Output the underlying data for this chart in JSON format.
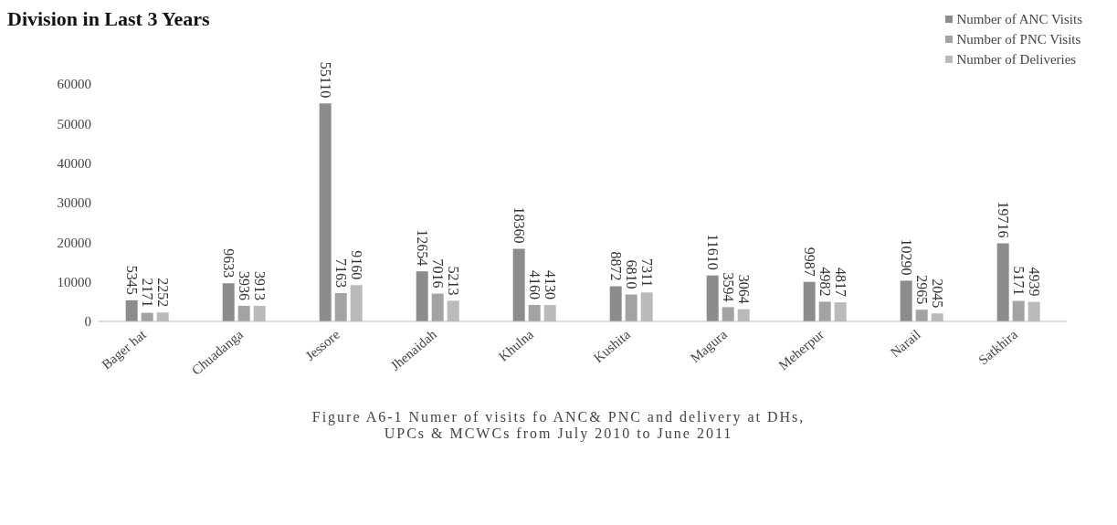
{
  "chart_data": {
    "type": "bar",
    "title": "Division in Last 3 Years",
    "annotations": [
      "Figure A6-1 Numer of visits fo ANC& PNC and delivery at DHs,",
      "UPCs & MCWCs from July 2010 to June 2011"
    ],
    "categories": [
      "Bager hat",
      "Chuadanga",
      "Jessore",
      "Jhenaidah",
      "Khulna",
      "Kushita",
      "Magura",
      "Meherpur",
      "Narail",
      "Satkhira"
    ],
    "series": [
      {
        "name": "Number of ANC Visits",
        "color": "#8c8c8c",
        "values": [
          5345,
          9633,
          55110,
          12654,
          18360,
          8872,
          11610,
          9987,
          10290,
          19716
        ]
      },
      {
        "name": "Number of PNC Visits",
        "color": "#a3a3a3",
        "values": [
          2171,
          3936,
          7163,
          7016,
          4160,
          6810,
          3594,
          4982,
          2965,
          5171
        ]
      },
      {
        "name": "Number of Deliveries",
        "color": "#bababa",
        "values": [
          2252,
          3913,
          9160,
          5213,
          4130,
          7311,
          3064,
          4817,
          2045,
          4939
        ]
      }
    ],
    "ylim": [
      0,
      60000
    ],
    "yticks": [
      0,
      10000,
      20000,
      30000,
      40000,
      50000,
      60000
    ],
    "grid": false,
    "legend": "top right",
    "data_labels": true
  }
}
